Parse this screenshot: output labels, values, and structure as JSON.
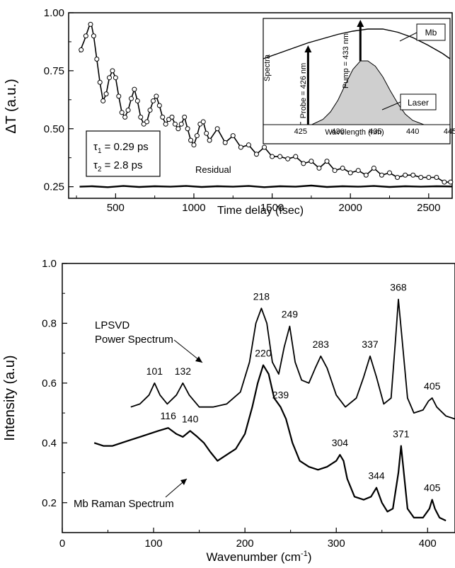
{
  "chart_data": [
    {
      "type": "line",
      "panel": "top",
      "xlabel": "Time delay (fsec)",
      "ylabel": "ΔT (a.u.)",
      "xlim": [
        200,
        2650
      ],
      "ylim": [
        0.2,
        1.0
      ],
      "xticks": [
        "500",
        "1000",
        "1500",
        "2000",
        "2500"
      ],
      "xtick_values": [
        500,
        1000,
        1500,
        2000,
        2500
      ],
      "yticks": [
        "0.25",
        "0.50",
        "0.75",
        "1.00"
      ],
      "ytick_values": [
        0.25,
        0.5,
        0.75,
        1.0
      ],
      "fit_params": {
        "tau1_symbol": "τ",
        "tau1_sub": "1",
        "tau1_value": " = 0.29 ps",
        "tau2_symbol": "τ",
        "tau2_sub": "2",
        "tau2_value": " = 2.8 ps"
      },
      "residual_label": "Residual",
      "series": [
        {
          "kind": "data-points",
          "x": [
            280,
            310,
            340,
            360,
            380,
            400,
            420,
            440,
            460,
            480,
            500,
            520,
            540,
            560,
            580,
            600,
            620,
            640,
            660,
            680,
            700,
            720,
            740,
            760,
            780,
            800,
            820,
            840,
            860,
            880,
            900,
            920,
            940,
            960,
            980,
            1000,
            1020,
            1040,
            1060,
            1080,
            1100,
            1150,
            1200,
            1250,
            1300,
            1350,
            1400,
            1450,
            1500,
            1550,
            1600,
            1650,
            1700,
            1750,
            1800,
            1850,
            1900,
            1950,
            2000,
            2050,
            2100,
            2150,
            2200,
            2250,
            2300,
            2350,
            2400,
            2450,
            2500,
            2550,
            2600,
            2640
          ],
          "y": [
            0.84,
            0.9,
            0.95,
            0.9,
            0.8,
            0.7,
            0.62,
            0.65,
            0.72,
            0.75,
            0.72,
            0.64,
            0.57,
            0.55,
            0.58,
            0.63,
            0.67,
            0.62,
            0.55,
            0.52,
            0.53,
            0.58,
            0.62,
            0.64,
            0.6,
            0.55,
            0.52,
            0.54,
            0.55,
            0.52,
            0.5,
            0.52,
            0.55,
            0.5,
            0.45,
            0.43,
            0.47,
            0.52,
            0.53,
            0.48,
            0.45,
            0.5,
            0.44,
            0.47,
            0.42,
            0.43,
            0.39,
            0.42,
            0.38,
            0.38,
            0.37,
            0.38,
            0.35,
            0.36,
            0.33,
            0.36,
            0.32,
            0.33,
            0.31,
            0.32,
            0.3,
            0.33,
            0.3,
            0.31,
            0.29,
            0.3,
            0.3,
            0.29,
            0.29,
            0.29,
            0.27,
            0.27
          ]
        },
        {
          "kind": "fit",
          "x": [
            270,
            300,
            330,
            345,
            360,
            380,
            400,
            420,
            440,
            460,
            480,
            500,
            520,
            540,
            560,
            580,
            600,
            620,
            640,
            660,
            680,
            700,
            720,
            740,
            760,
            780,
            800,
            820,
            840,
            860,
            880,
            900,
            920,
            940,
            960,
            980,
            1000,
            1020,
            1040,
            1060,
            1080,
            1100,
            1150,
            1200,
            1250,
            1300,
            1350,
            1400,
            1450,
            1500,
            1550,
            1600,
            1650,
            1700,
            1750,
            1800,
            1850,
            1900,
            1950,
            2000,
            2050,
            2100,
            2150,
            2200,
            2250,
            2300,
            2350,
            2400,
            2450,
            2500,
            2550,
            2600,
            2650
          ],
          "y": [
            0.83,
            0.88,
            0.94,
            0.95,
            0.9,
            0.8,
            0.7,
            0.62,
            0.65,
            0.72,
            0.75,
            0.72,
            0.64,
            0.57,
            0.55,
            0.58,
            0.63,
            0.67,
            0.62,
            0.55,
            0.52,
            0.53,
            0.58,
            0.62,
            0.64,
            0.6,
            0.55,
            0.52,
            0.54,
            0.55,
            0.52,
            0.5,
            0.52,
            0.55,
            0.5,
            0.45,
            0.43,
            0.47,
            0.52,
            0.53,
            0.48,
            0.45,
            0.5,
            0.44,
            0.47,
            0.42,
            0.43,
            0.39,
            0.42,
            0.38,
            0.38,
            0.37,
            0.38,
            0.35,
            0.36,
            0.33,
            0.36,
            0.32,
            0.33,
            0.31,
            0.32,
            0.3,
            0.33,
            0.3,
            0.31,
            0.29,
            0.3,
            0.3,
            0.29,
            0.29,
            0.29,
            0.27,
            0.27
          ]
        },
        {
          "kind": "residual",
          "x": [
            270,
            350,
            450,
            550,
            650,
            750,
            850,
            950,
            1050,
            1150,
            1250,
            1350,
            1450,
            1550,
            1650,
            1750,
            1850,
            1950,
            2050,
            2150,
            2250,
            2350,
            2450,
            2550,
            2650
          ],
          "y": [
            0.25,
            0.252,
            0.248,
            0.253,
            0.249,
            0.252,
            0.25,
            0.253,
            0.249,
            0.252,
            0.25,
            0.253,
            0.248,
            0.252,
            0.25,
            0.255,
            0.249,
            0.252,
            0.25,
            0.253,
            0.249,
            0.252,
            0.25,
            0.252,
            0.251
          ]
        }
      ],
      "inset": {
        "ylabel": "Spectra",
        "xlabel": "Wavelength (nm)",
        "xlim": [
          420,
          445
        ],
        "xticks": [
          "425",
          "430",
          "435",
          "440",
          "445"
        ],
        "xtick_values": [
          425,
          430,
          435,
          440,
          445
        ],
        "mb_label": "Mb",
        "laser_label": "Laser",
        "probe_label": "Probe = 426 nm",
        "probe_nm": 426,
        "pump_label": "Pump = 433 nm",
        "pump_nm": 433,
        "mb_curve": {
          "x": [
            420,
            422,
            424,
            426,
            428,
            430,
            432,
            434,
            435,
            436,
            438,
            440,
            442,
            444,
            445
          ],
          "y": [
            0.62,
            0.67,
            0.72,
            0.77,
            0.81,
            0.85,
            0.88,
            0.9,
            0.9,
            0.9,
            0.87,
            0.82,
            0.75,
            0.67,
            0.62
          ]
        },
        "laser_curve": {
          "x": [
            426.5,
            428,
            429,
            430,
            431,
            432,
            433,
            434,
            435,
            436,
            437,
            438,
            439,
            440,
            441.5
          ],
          "y": [
            0.0,
            0.05,
            0.12,
            0.23,
            0.38,
            0.52,
            0.6,
            0.6,
            0.55,
            0.45,
            0.32,
            0.2,
            0.1,
            0.04,
            0.0
          ]
        }
      }
    },
    {
      "type": "line",
      "panel": "bottom",
      "xlabel": "Wavenumber (cm",
      "xlabel_sup": "-1",
      "xlabel_end": ")",
      "ylabel": "Intensity (a.u)",
      "xlim": [
        0,
        430
      ],
      "ylim": [
        0.1,
        1.0
      ],
      "xticks": [
        "0",
        "100",
        "200",
        "300",
        "400"
      ],
      "xtick_values": [
        0,
        100,
        200,
        300,
        400
      ],
      "yticks": [
        "0.2",
        "0.4",
        "0.6",
        "0.8",
        "1.0"
      ],
      "ytick_values": [
        0.2,
        0.4,
        0.6,
        0.8,
        1.0
      ],
      "annotations": {
        "lpsvd_line1": "LPSVD",
        "lpsvd_line2": "Power Spectrum",
        "raman": "Mb Raman Spectrum"
      },
      "series": [
        {
          "kind": "lpsvd-power-spectrum",
          "x": [
            75,
            85,
            95,
            101,
            107,
            115,
            125,
            132,
            139,
            150,
            165,
            180,
            195,
            205,
            212,
            218,
            224,
            230,
            237,
            243,
            249,
            255,
            262,
            270,
            277,
            283,
            290,
            300,
            310,
            322,
            330,
            337,
            344,
            352,
            360,
            365,
            368,
            372,
            378,
            385,
            395,
            401,
            405,
            410,
            420,
            430
          ],
          "y": [
            0.52,
            0.53,
            0.56,
            0.6,
            0.56,
            0.53,
            0.56,
            0.6,
            0.56,
            0.52,
            0.52,
            0.53,
            0.57,
            0.67,
            0.8,
            0.85,
            0.8,
            0.67,
            0.63,
            0.72,
            0.79,
            0.67,
            0.61,
            0.6,
            0.65,
            0.69,
            0.65,
            0.56,
            0.52,
            0.55,
            0.62,
            0.69,
            0.62,
            0.53,
            0.55,
            0.75,
            0.88,
            0.75,
            0.55,
            0.5,
            0.51,
            0.54,
            0.55,
            0.52,
            0.49,
            0.48
          ]
        },
        {
          "kind": "mb-raman-spectrum",
          "x": [
            35,
            45,
            55,
            65,
            75,
            85,
            95,
            105,
            116,
            125,
            132,
            140,
            148,
            155,
            162,
            170,
            180,
            190,
            200,
            208,
            214,
            220,
            226,
            232,
            239,
            245,
            252,
            260,
            270,
            280,
            290,
            300,
            304,
            308,
            312,
            320,
            330,
            338,
            344,
            350,
            356,
            362,
            368,
            371,
            374,
            378,
            385,
            395,
            402,
            405,
            408,
            413,
            420
          ],
          "y": [
            0.4,
            0.39,
            0.39,
            0.4,
            0.41,
            0.42,
            0.43,
            0.44,
            0.45,
            0.43,
            0.42,
            0.44,
            0.42,
            0.4,
            0.37,
            0.34,
            0.36,
            0.38,
            0.43,
            0.52,
            0.6,
            0.66,
            0.63,
            0.55,
            0.52,
            0.48,
            0.4,
            0.34,
            0.32,
            0.31,
            0.32,
            0.34,
            0.36,
            0.34,
            0.28,
            0.22,
            0.21,
            0.22,
            0.25,
            0.2,
            0.17,
            0.18,
            0.3,
            0.39,
            0.3,
            0.18,
            0.15,
            0.15,
            0.18,
            0.21,
            0.18,
            0.15,
            0.14
          ]
        }
      ],
      "peak_labels": [
        {
          "text": "101",
          "x": 101,
          "y": 0.6
        },
        {
          "text": "132",
          "x": 132,
          "y": 0.6
        },
        {
          "text": "218",
          "x": 218,
          "y": 0.85
        },
        {
          "text": "249",
          "x": 249,
          "y": 0.79
        },
        {
          "text": "283",
          "x": 283,
          "y": 0.69
        },
        {
          "text": "337",
          "x": 337,
          "y": 0.69
        },
        {
          "text": "368",
          "x": 368,
          "y": 0.88
        },
        {
          "text": "405",
          "x": 405,
          "y": 0.55
        },
        {
          "text": "116",
          "x": 116,
          "y": 0.45
        },
        {
          "text": "140",
          "x": 140,
          "y": 0.44
        },
        {
          "text": "220",
          "x": 220,
          "y": 0.66
        },
        {
          "text": "239",
          "x": 239,
          "y": 0.52
        },
        {
          "text": "304",
          "x": 304,
          "y": 0.36
        },
        {
          "text": "344",
          "x": 344,
          "y": 0.25
        },
        {
          "text": "371",
          "x": 371,
          "y": 0.39
        },
        {
          "text": "405",
          "x": 405,
          "y": 0.21
        }
      ]
    }
  ]
}
